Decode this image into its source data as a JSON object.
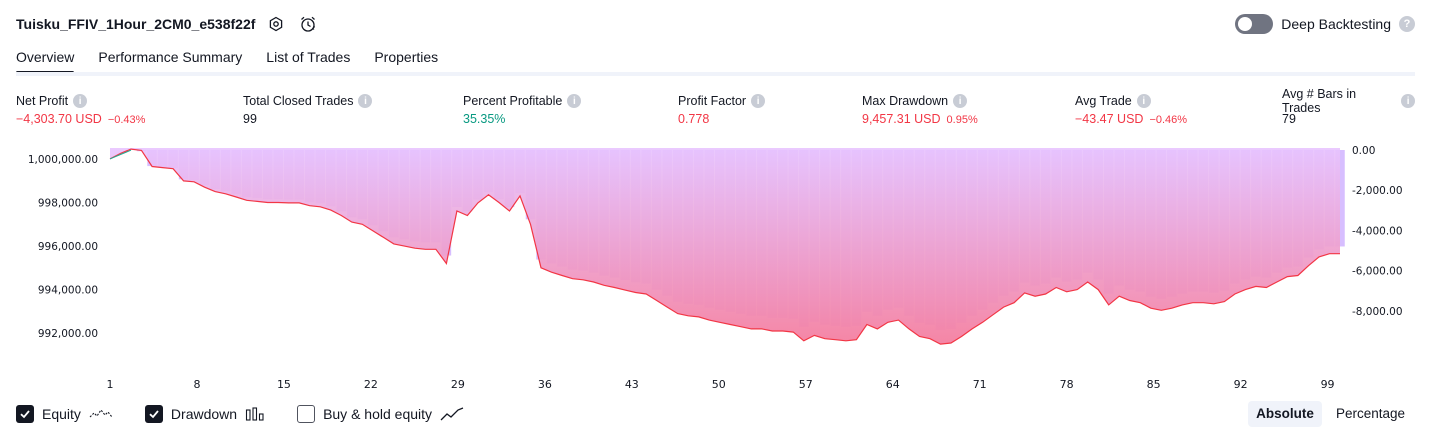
{
  "header": {
    "strategy_title": "Tuisku_FFIV_1Hour_2CM0_e538f22f",
    "icons": [
      "settings-icon",
      "alarm-clock-icon"
    ],
    "deep_backtesting_label": "Deep Backtesting",
    "deep_backtesting_enabled": false
  },
  "tabs": [
    {
      "label": "Overview",
      "active": true
    },
    {
      "label": "Performance Summary",
      "active": false
    },
    {
      "label": "List of Trades",
      "active": false
    },
    {
      "label": "Properties",
      "active": false
    }
  ],
  "metrics": [
    {
      "label": "Net Profit",
      "value": "−4,303.70 USD",
      "pct": "−0.43%",
      "tone": "neg"
    },
    {
      "label": "Total Closed Trades",
      "value": "99",
      "pct": "",
      "tone": "neu"
    },
    {
      "label": "Percent Profitable",
      "value": "35.35%",
      "pct": "",
      "tone": "pos"
    },
    {
      "label": "Profit Factor",
      "value": "0.778",
      "pct": "",
      "tone": "neg"
    },
    {
      "label": "Max Drawdown",
      "value": "9,457.31 USD",
      "pct": "0.95%",
      "tone": "neg"
    },
    {
      "label": "Avg Trade",
      "value": "−43.47 USD",
      "pct": "−0.46%",
      "tone": "neg"
    },
    {
      "label": "Avg # Bars in Trades",
      "value": "79",
      "pct": "",
      "tone": "neu"
    }
  ],
  "chart_data": {
    "type": "line",
    "left_axis": {
      "ticks": [
        "1,000,000.00",
        "998,000.00",
        "996,000.00",
        "994,000.00",
        "992,000.00"
      ],
      "range": [
        991000,
        1000500
      ]
    },
    "right_axis": {
      "ticks": [
        "0.00",
        "-2,000.00",
        "-4,000.00",
        "-6,000.00",
        "-8,000.00"
      ],
      "range": [
        -10200,
        100
      ]
    },
    "x_ticks": [
      "1",
      "8",
      "15",
      "22",
      "29",
      "36",
      "43",
      "50",
      "57",
      "64",
      "71",
      "78",
      "85",
      "92",
      "99"
    ],
    "x_range": [
      1,
      100
    ],
    "series": [
      {
        "kind": "equity",
        "color": "#f23645",
        "values": [
          1000000,
          1000250,
          1000450,
          1000390,
          999650,
          999600,
          999550,
          998990,
          998950,
          998700,
          998500,
          998400,
          998250,
          998100,
          998050,
          998000,
          998000,
          997980,
          997980,
          997850,
          997800,
          997650,
          997400,
          997100,
          997000,
          996700,
          996400,
          996100,
          996000,
          995900,
          995850,
          995850,
          995200,
          997610,
          997400,
          997980,
          998350,
          998000,
          997610,
          998300,
          997000,
          995000,
          994800,
          994650,
          994500,
          994450,
          994350,
          994200,
          994100,
          993980,
          993870,
          993800,
          993500,
          993200,
          992900,
          992800,
          992750,
          992600,
          992500,
          992400,
          992300,
          992200,
          992200,
          992100,
          992100,
          992050,
          991650,
          991900,
          991750,
          991700,
          991650,
          991700,
          992400,
          992200,
          992500,
          992600,
          992200,
          991850,
          991750,
          991500,
          991550,
          991850,
          992200,
          992500,
          992850,
          993200,
          993400,
          993850,
          993700,
          993800,
          994100,
          993900,
          994000,
          994350,
          994000,
          993300,
          993700,
          993500,
          993400,
          993150,
          993050,
          993150,
          993300,
          993400,
          993400,
          993350,
          993450,
          993800,
          994000,
          994150,
          994100,
          994350,
          994600,
          994650,
          995100,
          995500,
          995650,
          995650
        ]
      },
      {
        "kind": "buy_hold",
        "color": "#22ab94",
        "values": [
          1000000,
          1000200,
          1000400
        ]
      }
    ],
    "drawdown_color": "#c9a8ff"
  },
  "legend": [
    {
      "label": "Equity",
      "checked": true,
      "icon": "equity-line-icon"
    },
    {
      "label": "Drawdown",
      "checked": true,
      "icon": "bars-icon"
    },
    {
      "label": "Buy & hold equity",
      "checked": false,
      "icon": "trend-line-icon"
    }
  ],
  "mode": {
    "options": [
      "Absolute",
      "Percentage"
    ],
    "selected": "Absolute"
  }
}
